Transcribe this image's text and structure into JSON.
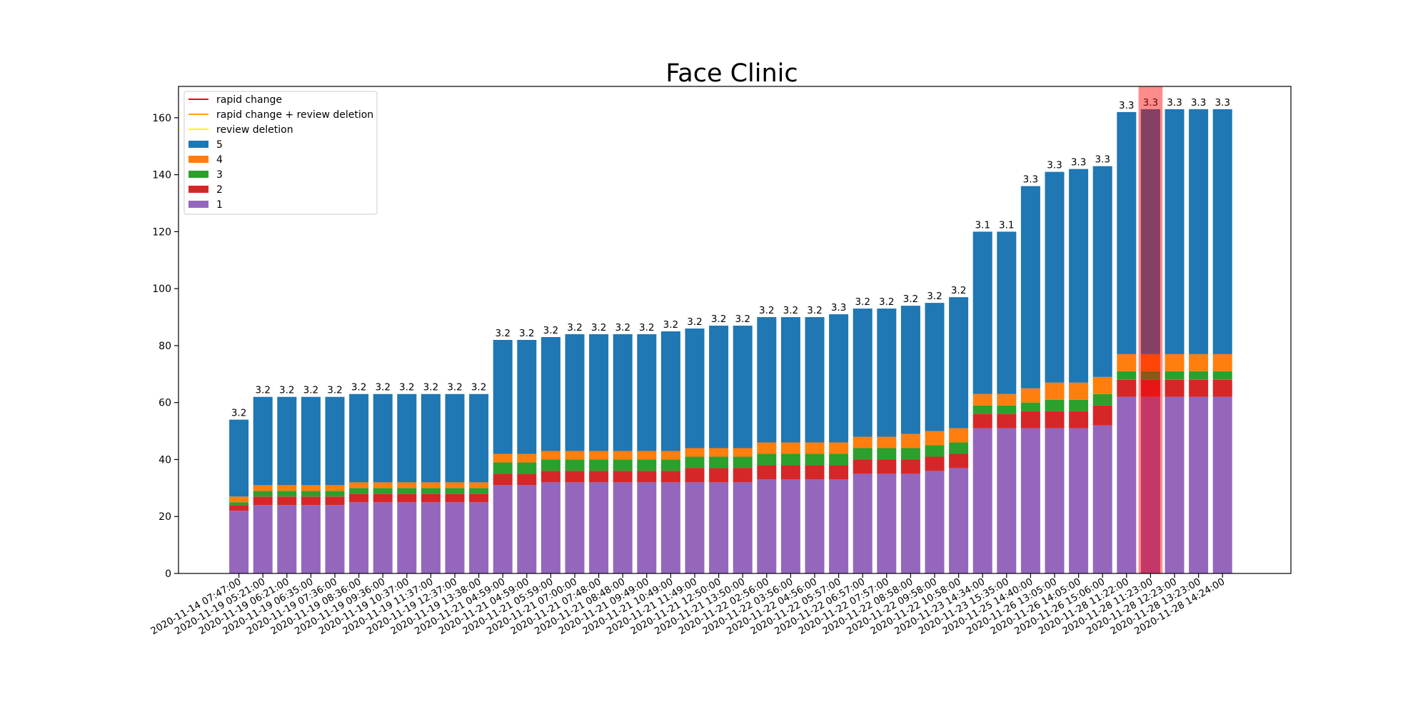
{
  "chart_data": {
    "type": "bar",
    "title": "Face Clinic",
    "xlabel": "",
    "ylabel": "",
    "ylim": [
      0,
      171
    ],
    "yticks": [
      0,
      20,
      40,
      60,
      80,
      100,
      120,
      140,
      160
    ],
    "grid": false,
    "legend_position": "top-left",
    "categories": [
      "2020-11-14 07:47:00",
      "2020-11-19 05:21:00",
      "2020-11-19 06:21:00",
      "2020-11-19 06:35:00",
      "2020-11-19 07:36:00",
      "2020-11-19 08:36:00",
      "2020-11-19 09:36:00",
      "2020-11-19 10:37:00",
      "2020-11-19 11:37:00",
      "2020-11-19 12:37:00",
      "2020-11-19 13:38:00",
      "2020-11-21 04:59:00",
      "2020-11-21 04:59:00",
      "2020-11-21 05:59:00",
      "2020-11-21 07:00:00",
      "2020-11-21 07:48:00",
      "2020-11-21 08:48:00",
      "2020-11-21 09:49:00",
      "2020-11-21 10:49:00",
      "2020-11-21 11:49:00",
      "2020-11-21 12:50:00",
      "2020-11-21 13:50:00",
      "2020-11-22 02:56:00",
      "2020-11-22 03:56:00",
      "2020-11-22 04:56:00",
      "2020-11-22 05:57:00",
      "2020-11-22 06:57:00",
      "2020-11-22 07:57:00",
      "2020-11-22 08:58:00",
      "2020-11-22 09:58:00",
      "2020-11-22 10:58:00",
      "2020-11-23 14:34:00",
      "2020-11-23 15:35:00",
      "2020-11-25 14:40:00",
      "2020-11-26 13:05:00",
      "2020-11-26 14:05:00",
      "2020-11-26 15:06:00",
      "2020-11-28 11:22:00",
      "2020-11-28 11:23:00",
      "2020-11-28 12:23:00",
      "2020-11-28 13:23:00",
      "2020-11-28 14:24:00"
    ],
    "series": [
      {
        "name": "1",
        "color": "#9467bd",
        "values": [
          22,
          24,
          24,
          24,
          24,
          25,
          25,
          25,
          25,
          25,
          25,
          31,
          31,
          32,
          32,
          32,
          32,
          32,
          32,
          32,
          32,
          32,
          33,
          33,
          33,
          33,
          35,
          35,
          35,
          36,
          37,
          51,
          51,
          51,
          51,
          51,
          52,
          62,
          62,
          62,
          62,
          62
        ]
      },
      {
        "name": "2",
        "color": "#d62728",
        "values": [
          2,
          3,
          3,
          3,
          3,
          3,
          3,
          3,
          3,
          3,
          3,
          4,
          4,
          4,
          4,
          4,
          4,
          4,
          4,
          5,
          5,
          5,
          5,
          5,
          5,
          5,
          5,
          5,
          5,
          5,
          5,
          5,
          5,
          6,
          6,
          6,
          7,
          6,
          6,
          6,
          6,
          6
        ]
      },
      {
        "name": "3",
        "color": "#2ca02c",
        "values": [
          1,
          2,
          2,
          2,
          2,
          2,
          2,
          2,
          2,
          2,
          2,
          4,
          4,
          4,
          4,
          4,
          4,
          4,
          4,
          4,
          4,
          4,
          4,
          4,
          4,
          4,
          4,
          4,
          4,
          4,
          4,
          3,
          3,
          3,
          4,
          4,
          4,
          3,
          3,
          3,
          3,
          3
        ]
      },
      {
        "name": "4",
        "color": "#ff7f0e",
        "values": [
          2,
          2,
          2,
          2,
          2,
          2,
          2,
          2,
          2,
          2,
          2,
          3,
          3,
          3,
          3,
          3,
          3,
          3,
          3,
          3,
          3,
          3,
          4,
          4,
          4,
          4,
          4,
          4,
          5,
          5,
          5,
          4,
          4,
          5,
          6,
          6,
          6,
          6,
          6,
          6,
          6,
          6
        ]
      },
      {
        "name": "5",
        "color": "#1f77b4",
        "values": [
          27,
          31,
          31,
          31,
          31,
          31,
          31,
          31,
          31,
          31,
          31,
          40,
          40,
          40,
          41,
          41,
          41,
          41,
          42,
          42,
          43,
          43,
          44,
          44,
          44,
          45,
          45,
          45,
          45,
          45,
          46,
          57,
          57,
          71,
          74,
          75,
          74,
          85,
          86,
          86,
          86,
          86
        ]
      }
    ],
    "bar_labels": [
      "3.2",
      "3.2",
      "3.2",
      "3.2",
      "3.2",
      "3.2",
      "3.2",
      "3.2",
      "3.2",
      "3.2",
      "3.2",
      "3.2",
      "3.2",
      "3.2",
      "3.2",
      "3.2",
      "3.2",
      "3.2",
      "3.2",
      "3.2",
      "3.2",
      "3.2",
      "3.2",
      "3.2",
      "3.2",
      "3.3",
      "3.2",
      "3.2",
      "3.2",
      "3.2",
      "3.2",
      "3.1",
      "3.1",
      "3.3",
      "3.3",
      "3.3",
      "3.3",
      "3.3",
      "3.3",
      "3.3",
      "3.3",
      "3.3"
    ],
    "highlight_span": {
      "from_index": 37.5,
      "to_index": 38.5,
      "color": "#ff0000",
      "opacity": 0.45
    },
    "legend_lines": [
      {
        "label": "rapid change",
        "color": "#ff0000"
      },
      {
        "label": "rapid change + review deletion",
        "color": "#ffa500"
      },
      {
        "label": "review deletion",
        "color": "#ffff00"
      }
    ]
  }
}
